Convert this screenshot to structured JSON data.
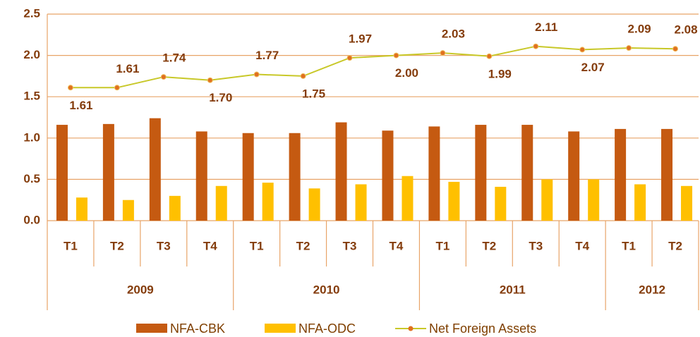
{
  "chart_data": {
    "type": "bar_line",
    "categories": [
      "T1",
      "T2",
      "T3",
      "T4",
      "T1",
      "T2",
      "T3",
      "T4",
      "T1",
      "T2",
      "T3",
      "T4",
      "T1",
      "T2"
    ],
    "years": [
      "2009",
      null,
      null,
      null,
      "2010",
      null,
      null,
      null,
      "2011",
      null,
      null,
      null,
      "2012",
      null
    ],
    "series": [
      {
        "name": "NFA-CBK",
        "type": "bar",
        "color": "#c55a11",
        "values": [
          1.16,
          1.17,
          1.24,
          1.08,
          1.06,
          1.06,
          1.19,
          1.09,
          1.14,
          1.16,
          1.16,
          1.08,
          1.11,
          1.11
        ]
      },
      {
        "name": "NFA-ODC",
        "type": "bar",
        "color": "#ffc000",
        "values": [
          0.28,
          0.25,
          0.3,
          0.42,
          0.46,
          0.39,
          0.44,
          0.54,
          0.47,
          0.41,
          0.5,
          0.5,
          0.44,
          0.42
        ]
      },
      {
        "name": "Net Foreign Assets",
        "type": "line",
        "color": "#c8c828",
        "marker_color": "#e07020",
        "values": [
          1.61,
          1.61,
          1.74,
          1.7,
          1.77,
          1.75,
          1.97,
          2.0,
          2.03,
          1.99,
          2.11,
          2.07,
          2.09,
          2.08
        ],
        "value_labels": [
          "1.61",
          "1.61",
          "1.74",
          "1.70",
          "1.77",
          "1.75",
          "1.97",
          "2.00",
          "2.03",
          "1.99",
          "2.11",
          "2.07",
          "2.09",
          "2.08"
        ]
      }
    ],
    "ylim": [
      0,
      2.5
    ],
    "yticks": [
      {
        "value": 0,
        "label": "0.0"
      },
      0.5,
      {
        "value": 1,
        "label": "1.0"
      },
      1.5,
      {
        "value": 2,
        "label": "2.0"
      },
      2.5
    ],
    "grid": true,
    "legend": "bottom"
  }
}
